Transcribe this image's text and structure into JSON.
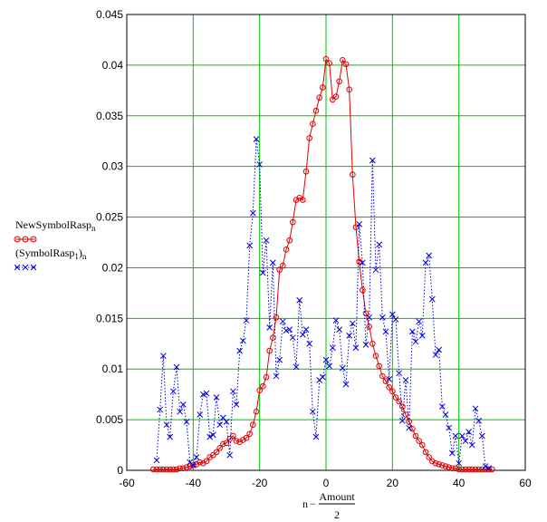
{
  "chart_data": {
    "type": "line",
    "xlim": [
      -60,
      60
    ],
    "ylim": [
      0,
      0.045
    ],
    "x_ticks": [
      "-60",
      "-40",
      "-20",
      "0",
      "20",
      "40",
      "60"
    ],
    "y_ticks": [
      "0",
      "0.005",
      "0.01",
      "0.015",
      "0.02",
      "0.025",
      "0.03",
      "0.035",
      "0.04",
      "0.045"
    ],
    "grid": true,
    "grid_color": "#00c000",
    "xlabel": {
      "prefix": "n",
      "minus": "−",
      "numerator": "Amount",
      "denominator": "2"
    },
    "legend": {
      "series1_name": "NewSymbolRasp",
      "series1_sub": "n",
      "series2_name": "(SymbolRasp",
      "series2_sub1": "1",
      "series2_close": ")",
      "series2_sub2": "n",
      "placement": "left"
    },
    "series": [
      {
        "name": "NewSymbolRasp",
        "color": "#e00000",
        "style": "solid-circles",
        "x": [
          -52,
          -51,
          -50,
          -49,
          -48,
          -47,
          -46,
          -45,
          -44,
          -43,
          -42,
          -41,
          -40,
          -39,
          -38,
          -37,
          -36,
          -35,
          -34,
          -33,
          -32,
          -31,
          -30,
          -29,
          -28,
          -27,
          -26,
          -25,
          -24,
          -23,
          -22,
          -21,
          -20,
          -19,
          -18,
          -17,
          -16,
          -15,
          -14,
          -13,
          -12,
          -11,
          -10,
          -9,
          -8,
          -7,
          -6,
          -5,
          -4,
          -3,
          -2,
          -1,
          0,
          1,
          2,
          3,
          4,
          5,
          6,
          7,
          8,
          9,
          10,
          11,
          12,
          13,
          14,
          15,
          16,
          17,
          18,
          19,
          20,
          21,
          22,
          23,
          24,
          25,
          26,
          27,
          28,
          29,
          30,
          31,
          32,
          33,
          34,
          35,
          36,
          37,
          38,
          39,
          40,
          41,
          42,
          43,
          44,
          45,
          46,
          47,
          48,
          49,
          50
        ],
        "values": [
          0.0001,
          0.0001,
          0.0001,
          0.0001,
          0.0001,
          0.0001,
          0.0001,
          0.0001,
          0.0002,
          0.0002,
          0.0003,
          0.0004,
          0.0005,
          0.0006,
          0.0008,
          0.0007,
          0.0009,
          0.0013,
          0.0015,
          0.0018,
          0.0022,
          0.0026,
          0.0027,
          0.0031,
          0.0034,
          0.0029,
          0.0028,
          0.003,
          0.0032,
          0.0036,
          0.0045,
          0.0058,
          0.0079,
          0.0083,
          0.0092,
          0.0118,
          0.0131,
          0.0151,
          0.0198,
          0.0202,
          0.0218,
          0.0227,
          0.0245,
          0.0267,
          0.0269,
          0.0267,
          0.0295,
          0.0328,
          0.0342,
          0.0355,
          0.0368,
          0.0378,
          0.0406,
          0.0402,
          0.0366,
          0.0369,
          0.0384,
          0.0405,
          0.0401,
          0.0376,
          0.0292,
          0.024,
          0.0206,
          0.0178,
          0.0155,
          0.0142,
          0.0125,
          0.0113,
          0.0103,
          0.0093,
          0.0088,
          0.0082,
          0.0078,
          0.0072,
          0.0068,
          0.0063,
          0.0055,
          0.0048,
          0.0041,
          0.0034,
          0.0029,
          0.0025,
          0.0018,
          0.0013,
          0.0009,
          0.0007,
          0.0006,
          0.0005,
          0.0004,
          0.0003,
          0.0002,
          0.0002,
          0.0001,
          0.0001,
          0.0001,
          0.0001,
          0.0001,
          0.0001,
          0.0001,
          0.0001,
          0.0001,
          0.0001,
          0.0001
        ]
      },
      {
        "name": "(SymbolRasp1)",
        "color": "#0000e0",
        "style": "dotted-crosses",
        "x": [
          -51,
          -50,
          -49,
          -48,
          -47,
          -46,
          -45,
          -44,
          -43,
          -42,
          -41,
          -40,
          -39,
          -38,
          -37,
          -36,
          -35,
          -34,
          -33,
          -32,
          -31,
          -30,
          -29,
          -28,
          -27,
          -26,
          -25,
          -24,
          -23,
          -22,
          -21,
          -20,
          -19,
          -18,
          -17,
          -16,
          -15,
          -14,
          -13,
          -12,
          -11,
          -10,
          -9,
          -8,
          -7,
          -6,
          -5,
          -4,
          -3,
          -2,
          -1,
          0,
          1,
          2,
          3,
          4,
          5,
          6,
          7,
          8,
          9,
          10,
          11,
          12,
          13,
          14,
          15,
          16,
          17,
          18,
          19,
          20,
          21,
          22,
          23,
          24,
          25,
          26,
          27,
          28,
          29,
          30,
          31,
          32,
          33,
          34,
          35,
          36,
          37,
          38,
          39,
          40,
          41,
          42,
          43,
          44,
          45,
          46,
          47,
          48,
          49
        ],
        "values": [
          0.001,
          0.006,
          0.0113,
          0.0045,
          0.0033,
          0.0078,
          0.0102,
          0.0058,
          0.0065,
          0.0048,
          0.0008,
          0.0005,
          0.0013,
          0.0055,
          0.0075,
          0.0076,
          0.0033,
          0.0035,
          0.0072,
          0.0045,
          0.0052,
          0.0048,
          0.0015,
          0.0078,
          0.0065,
          0.0118,
          0.0128,
          0.0148,
          0.0222,
          0.0254,
          0.0327,
          0.0302,
          0.0195,
          0.0227,
          0.0141,
          0.0205,
          0.0093,
          0.0109,
          0.0147,
          0.0138,
          0.0139,
          0.0131,
          0.0102,
          0.0168,
          0.0134,
          0.0139,
          0.0125,
          0.0058,
          0.0033,
          0.0089,
          0.0092,
          0.0109,
          0.0103,
          0.0121,
          0.0148,
          0.0139,
          0.0101,
          0.0085,
          0.0133,
          0.0145,
          0.0121,
          0.0243,
          0.0205,
          0.0124,
          0.0151,
          0.0306,
          0.0198,
          0.0223,
          0.0151,
          0.0137,
          0.009,
          0.0154,
          0.0149,
          0.0096,
          0.0049,
          0.0089,
          0.0042,
          0.0137,
          0.0127,
          0.0147,
          0.0133,
          0.0205,
          0.0212,
          0.0169,
          0.0114,
          0.0119,
          0.0063,
          0.0055,
          0.0042,
          0.0017,
          0.0034,
          0.0007,
          0.0034,
          0.0029,
          0.0038,
          0.0025,
          0.0061,
          0.0049,
          0.0034,
          0.0004,
          0.0002
        ]
      }
    ]
  }
}
